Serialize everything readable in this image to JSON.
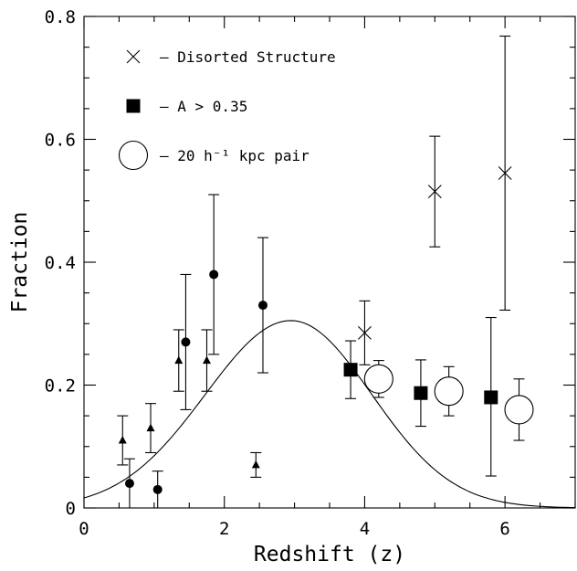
{
  "chart_data": {
    "type": "scatter",
    "xlabel": "Redshift (z)",
    "ylabel": "Fraction",
    "xlim": [
      0,
      7
    ],
    "ylim": [
      0,
      0.8
    ],
    "x_ticks": [
      "0",
      "2",
      "4",
      "6"
    ],
    "y_ticks": [
      "0",
      "0.2",
      "0.4",
      "0.6",
      "0.8"
    ],
    "grid": false,
    "legend_position": "top-left",
    "legend": [
      {
        "marker": "cross",
        "label": "– Disorted Structure"
      },
      {
        "marker": "square",
        "label": "– A > 0.35"
      },
      {
        "marker": "open-circle",
        "label": "– 20 h⁻¹ kpc pair"
      }
    ],
    "series": [
      {
        "marker": "triangle",
        "points": [
          {
            "x": 0.55,
            "y": 0.11,
            "ylo": 0.07,
            "yhi": 0.15
          },
          {
            "x": 0.95,
            "y": 0.13,
            "ylo": 0.09,
            "yhi": 0.17
          },
          {
            "x": 1.35,
            "y": 0.24,
            "ylo": 0.19,
            "yhi": 0.29
          },
          {
            "x": 1.75,
            "y": 0.24,
            "ylo": 0.19,
            "yhi": 0.29
          },
          {
            "x": 2.45,
            "y": 0.07,
            "ylo": 0.05,
            "yhi": 0.09
          }
        ]
      },
      {
        "marker": "filled-circle",
        "points": [
          {
            "x": 0.65,
            "y": 0.04,
            "ylo": 0.0,
            "yhi": 0.08
          },
          {
            "x": 1.05,
            "y": 0.03,
            "ylo": 0.0,
            "yhi": 0.06
          },
          {
            "x": 1.45,
            "y": 0.27,
            "ylo": 0.16,
            "yhi": 0.38
          },
          {
            "x": 1.85,
            "y": 0.38,
            "ylo": 0.25,
            "yhi": 0.51
          },
          {
            "x": 2.55,
            "y": 0.33,
            "ylo": 0.22,
            "yhi": 0.44
          }
        ]
      },
      {
        "marker": "cross",
        "points": [
          {
            "x": 4.0,
            "y": 0.285,
            "ylo": 0.233,
            "yhi": 0.337
          },
          {
            "x": 5.0,
            "y": 0.515,
            "ylo": 0.425,
            "yhi": 0.605
          },
          {
            "x": 6.0,
            "y": 0.545,
            "ylo": 0.322,
            "yhi": 0.768
          }
        ]
      },
      {
        "marker": "square",
        "points": [
          {
            "x": 3.8,
            "y": 0.225,
            "ylo": 0.178,
            "yhi": 0.272
          },
          {
            "x": 4.8,
            "y": 0.187,
            "ylo": 0.133,
            "yhi": 0.241
          },
          {
            "x": 5.8,
            "y": 0.18,
            "ylo": 0.052,
            "yhi": 0.31
          }
        ]
      },
      {
        "marker": "open-circle",
        "points": [
          {
            "x": 4.2,
            "y": 0.21,
            "ylo": 0.18,
            "yhi": 0.24
          },
          {
            "x": 5.2,
            "y": 0.19,
            "ylo": 0.15,
            "yhi": 0.23
          },
          {
            "x": 6.2,
            "y": 0.16,
            "ylo": 0.11,
            "yhi": 0.21
          }
        ]
      }
    ],
    "curve": {
      "peak_x": 2.95,
      "peak_y": 0.305,
      "x": [
        0,
        0.5,
        1.0,
        1.5,
        2.0,
        2.5,
        3.0,
        3.5,
        4.0,
        4.5,
        5.0,
        5.5,
        6.0,
        6.5,
        7.0
      ],
      "y": [
        0.017,
        0.034,
        0.066,
        0.117,
        0.185,
        0.258,
        0.305,
        0.29,
        0.235,
        0.165,
        0.104,
        0.061,
        0.034,
        0.019,
        0.01
      ]
    }
  }
}
